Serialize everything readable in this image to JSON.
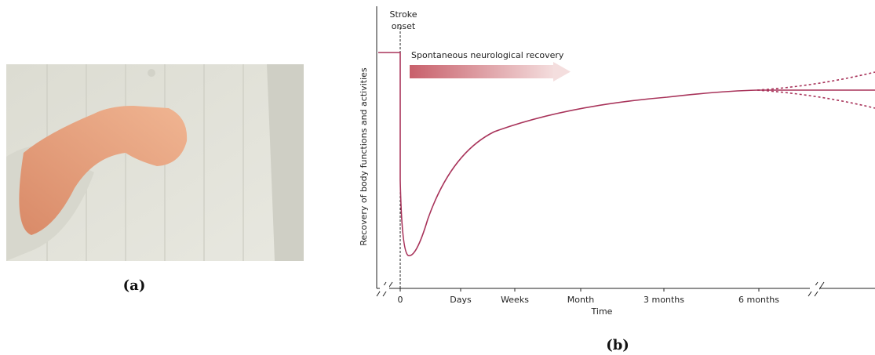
{
  "panel_a": {
    "label": "(a)"
  },
  "panel_b": {
    "label": "(b)",
    "y_label": "Recovery of body functions and activities",
    "x_label": "Time",
    "x_ticks": [
      "0",
      "Days",
      "Weeks",
      "Month",
      "3 months",
      "6 months"
    ],
    "onset_annotation": [
      "Stroke",
      "onset"
    ],
    "recovery_annotation": "Spontaneous neurological recovery"
  }
}
